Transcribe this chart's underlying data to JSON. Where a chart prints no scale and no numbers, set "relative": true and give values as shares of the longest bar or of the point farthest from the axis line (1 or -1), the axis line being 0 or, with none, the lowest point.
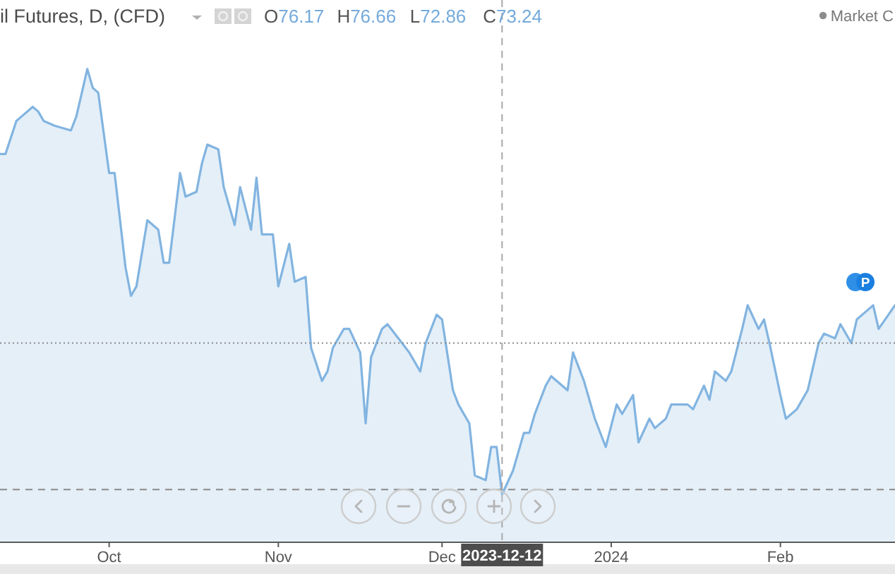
{
  "chart_data": {
    "type": "area",
    "title": "il Futures, D, (CFD)",
    "annotations": [
      "O76.17",
      "H76.66",
      "L72.86",
      "C73.24",
      "Market C",
      "P"
    ],
    "relative": true,
    "color": "#82b4e0",
    "x": [
      "2023-09-11",
      "2023-09-12",
      "2023-09-14",
      "2023-09-15",
      "2023-09-17",
      "2023-09-18",
      "2023-09-19",
      "2023-09-21",
      "2023-09-24",
      "2023-09-25",
      "2023-09-27",
      "2023-09-28",
      "2023-09-29",
      "2023-10-01",
      "2023-10-02",
      "2023-10-04",
      "2023-10-05",
      "2023-10-06",
      "2023-10-08",
      "2023-10-10",
      "2023-10-11",
      "2023-10-12",
      "2023-10-14",
      "2023-10-15",
      "2023-10-17",
      "2023-10-18",
      "2023-10-19",
      "2023-10-21",
      "2023-10-22",
      "2023-10-24",
      "2023-10-25",
      "2023-10-27",
      "2023-10-28",
      "2023-10-29",
      "2023-10-31",
      "2023-11-01",
      "2023-11-03",
      "2023-11-04",
      "2023-11-06",
      "2023-11-07",
      "2023-11-09",
      "2023-11-10",
      "2023-11-11",
      "2023-11-13",
      "2023-11-14",
      "2023-11-16",
      "2023-11-17",
      "2023-11-18",
      "2023-11-20",
      "2023-11-21",
      "2023-11-23",
      "2023-11-25",
      "2023-11-27",
      "2023-11-28",
      "2023-11-30",
      "2023-12-01",
      "2023-12-03",
      "2023-12-04",
      "2023-12-06",
      "2023-12-07",
      "2023-12-09",
      "2023-12-10",
      "2023-12-11",
      "2023-12-12",
      "2023-12-14",
      "2023-12-16",
      "2023-12-17",
      "2023-12-18",
      "2023-12-20",
      "2023-12-21",
      "2023-12-24",
      "2023-12-25",
      "2023-12-27",
      "2023-12-29",
      "2023-12-31",
      "2024-01-02",
      "2024-01-03",
      "2024-01-05",
      "2024-01-06",
      "2024-01-08",
      "2024-01-09",
      "2024-01-11",
      "2024-01-12",
      "2024-01-14",
      "2024-01-15",
      "2024-01-16",
      "2024-01-18",
      "2024-01-19",
      "2024-01-20",
      "2024-01-22",
      "2024-01-23",
      "2024-01-25",
      "2024-01-26",
      "2024-01-28",
      "2024-01-29",
      "2024-01-30",
      "2024-02-01",
      "2024-02-02",
      "2024-02-04",
      "2024-02-06",
      "2024-02-08",
      "2024-02-09",
      "2024-02-11",
      "2024-02-12",
      "2024-02-14",
      "2024-02-15",
      "2024-02-17",
      "2024-02-18",
      "2024-02-19",
      "2024-02-22"
    ],
    "values": [
      0.82,
      0.82,
      0.89,
      0.9,
      0.92,
      0.91,
      0.89,
      0.88,
      0.87,
      0.9,
      1.0,
      0.96,
      0.95,
      0.78,
      0.78,
      0.58,
      0.52,
      0.54,
      0.68,
      0.66,
      0.59,
      0.59,
      0.78,
      0.73,
      0.74,
      0.8,
      0.84,
      0.83,
      0.75,
      0.67,
      0.75,
      0.66,
      0.77,
      0.65,
      0.65,
      0.54,
      0.63,
      0.55,
      0.56,
      0.41,
      0.34,
      0.36,
      0.41,
      0.45,
      0.45,
      0.4,
      0.25,
      0.39,
      0.45,
      0.46,
      0.43,
      0.4,
      0.36,
      0.42,
      0.48,
      0.47,
      0.32,
      0.29,
      0.25,
      0.14,
      0.13,
      0.2,
      0.2,
      0.1,
      0.15,
      0.23,
      0.23,
      0.27,
      0.33,
      0.35,
      0.32,
      0.4,
      0.34,
      0.26,
      0.2,
      0.29,
      0.27,
      0.31,
      0.21,
      0.26,
      0.24,
      0.26,
      0.29,
      0.29,
      0.29,
      0.28,
      0.33,
      0.3,
      0.36,
      0.34,
      0.36,
      0.45,
      0.5,
      0.45,
      0.47,
      0.42,
      0.31,
      0.26,
      0.28,
      0.32,
      0.42,
      0.44,
      0.43,
      0.46,
      0.42,
      0.47,
      0.49,
      0.5,
      0.45,
      0.5
    ],
    "xlim": [
      "2023-09-11",
      "2024-02-22"
    ],
    "xticks": [
      {
        "value": "2023-10-01",
        "label": "Oct"
      },
      {
        "value": "2023-11-01",
        "label": "Nov"
      },
      {
        "value": "2023-12-01",
        "label": "Dec"
      },
      {
        "value": "2024-01-01",
        "label": "2024"
      },
      {
        "value": "2024-02-01",
        "label": "Feb"
      }
    ],
    "ref_lines": [
      {
        "axis": "y",
        "value": 0.42,
        "line_style": "dotted",
        "color": "#8a8a8a"
      },
      {
        "axis": "y",
        "value": 0.11,
        "line_style": "dashed",
        "color": "#8a8a8a"
      },
      {
        "axis": "x",
        "value": "2023-12-12",
        "label": "2023-12-12",
        "line_style": "dashed",
        "color": "#a8a8a8"
      }
    ]
  }
}
